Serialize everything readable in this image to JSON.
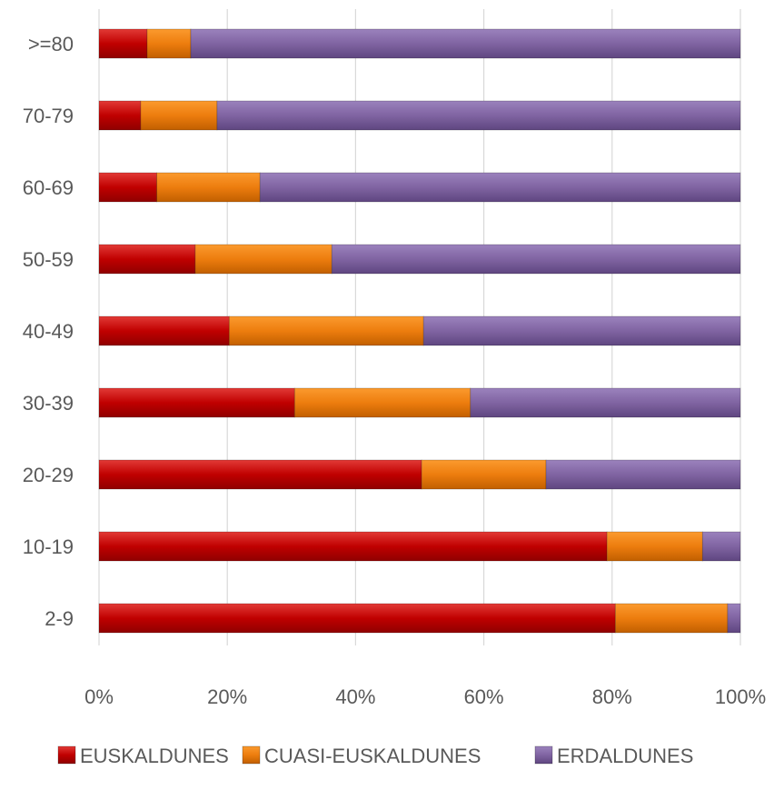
{
  "chart_data": {
    "type": "bar",
    "orientation": "horizontal",
    "stacked": "percent",
    "categories": [
      ">=80",
      "70-79",
      "60-69",
      "50-59",
      "40-49",
      "30-39",
      "20-29",
      "10-19",
      "2-9"
    ],
    "series": [
      {
        "name": "EUSKALDUNES",
        "color": "#c00000",
        "values": [
          7.5,
          6.5,
          9.0,
          15.0,
          20.3,
          30.5,
          50.3,
          79.2,
          80.5
        ]
      },
      {
        "name": "CUASI-EUSKALDUNES",
        "color": "#ed7d0e",
        "values": [
          6.8,
          11.9,
          16.1,
          21.3,
          30.3,
          27.4,
          19.4,
          14.9,
          17.5
        ]
      },
      {
        "name": "ERDALDUNES",
        "color": "#8064a2",
        "values": [
          85.7,
          81.6,
          74.9,
          63.7,
          49.4,
          42.1,
          30.3,
          5.9,
          2.0
        ]
      }
    ],
    "xticks": [
      "0%",
      "20%",
      "40%",
      "60%",
      "80%",
      "100%"
    ],
    "xlim": [
      0,
      100
    ],
    "grid": "vertical",
    "legend": "bottom",
    "title": "",
    "xlabel": "",
    "ylabel": ""
  }
}
